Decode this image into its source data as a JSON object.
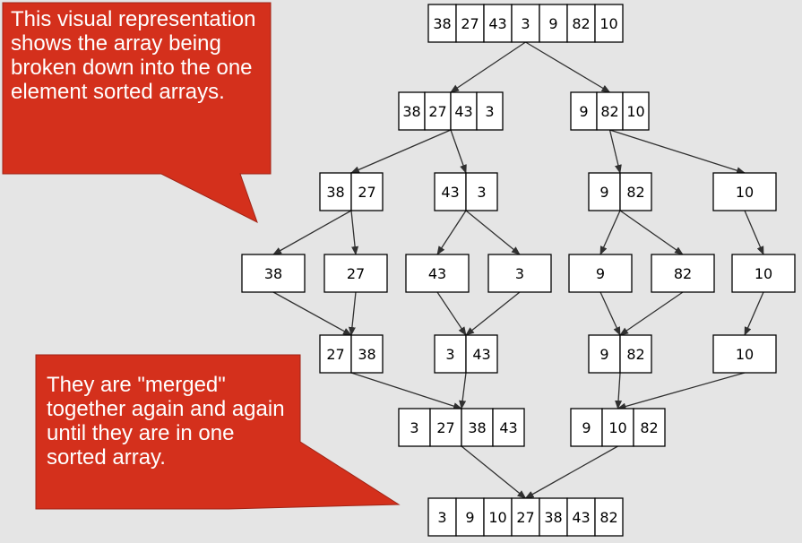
{
  "diagram": {
    "rows": [
      [
        {
          "id": "n0",
          "cells": [
            "38",
            "27",
            "43",
            "3",
            "9",
            "82",
            "10"
          ]
        }
      ],
      [
        {
          "id": "n1a",
          "cells": [
            "38",
            "27",
            "43",
            "3"
          ]
        },
        {
          "id": "n1b",
          "cells": [
            "9",
            "82",
            "10"
          ]
        }
      ],
      [
        {
          "id": "n2a",
          "cells": [
            "38",
            "27"
          ]
        },
        {
          "id": "n2b",
          "cells": [
            "43",
            "3"
          ]
        },
        {
          "id": "n2c",
          "cells": [
            "9",
            "82"
          ]
        },
        {
          "id": "n2d",
          "cells": [
            "10"
          ]
        }
      ],
      [
        {
          "id": "n3a",
          "cells": [
            "38"
          ]
        },
        {
          "id": "n3b",
          "cells": [
            "27"
          ]
        },
        {
          "id": "n3c",
          "cells": [
            "43"
          ]
        },
        {
          "id": "n3d",
          "cells": [
            "3"
          ]
        },
        {
          "id": "n3e",
          "cells": [
            "9"
          ]
        },
        {
          "id": "n3f",
          "cells": [
            "82"
          ]
        },
        {
          "id": "n3g",
          "cells": [
            "10"
          ]
        }
      ],
      [
        {
          "id": "n4a",
          "cells": [
            "27",
            "38"
          ]
        },
        {
          "id": "n4b",
          "cells": [
            "3",
            "43"
          ]
        },
        {
          "id": "n4c",
          "cells": [
            "9",
            "82"
          ]
        },
        {
          "id": "n4d",
          "cells": [
            "10"
          ]
        }
      ],
      [
        {
          "id": "n5a",
          "cells": [
            "3",
            "27",
            "38",
            "43"
          ]
        },
        {
          "id": "n5b",
          "cells": [
            "9",
            "10",
            "82"
          ]
        }
      ],
      [
        {
          "id": "n6",
          "cells": [
            "3",
            "9",
            "10",
            "27",
            "38",
            "43",
            "82"
          ]
        }
      ]
    ],
    "edges": [
      [
        "n0",
        "n1a"
      ],
      [
        "n0",
        "n1b"
      ],
      [
        "n1a",
        "n2a"
      ],
      [
        "n1a",
        "n2b"
      ],
      [
        "n1b",
        "n2c"
      ],
      [
        "n1b",
        "n2d"
      ],
      [
        "n2a",
        "n3a"
      ],
      [
        "n2a",
        "n3b"
      ],
      [
        "n2b",
        "n3c"
      ],
      [
        "n2b",
        "n3d"
      ],
      [
        "n2c",
        "n3e"
      ],
      [
        "n2c",
        "n3f"
      ],
      [
        "n2d",
        "n3g"
      ],
      [
        "n3a",
        "n4a"
      ],
      [
        "n3b",
        "n4a"
      ],
      [
        "n3c",
        "n4b"
      ],
      [
        "n3d",
        "n4b"
      ],
      [
        "n3e",
        "n4c"
      ],
      [
        "n3f",
        "n4c"
      ],
      [
        "n3g",
        "n4d"
      ],
      [
        "n4a",
        "n5a"
      ],
      [
        "n4b",
        "n5a"
      ],
      [
        "n4c",
        "n5b"
      ],
      [
        "n4d",
        "n5b"
      ],
      [
        "n5a",
        "n6"
      ],
      [
        "n5b",
        "n6"
      ]
    ]
  },
  "callouts": {
    "top": "This visual representation shows the array being broken down into the one element sorted arrays.",
    "bottom": "They are \"merged\" together again and again until they are in one sorted array."
  },
  "colors": {
    "background": "#e5e5e5",
    "callout_fill": "#d4301c",
    "callout_border": "#a02416",
    "node_fill": "#ffffff",
    "node_stroke": "#000000",
    "arrow": "#303030"
  }
}
